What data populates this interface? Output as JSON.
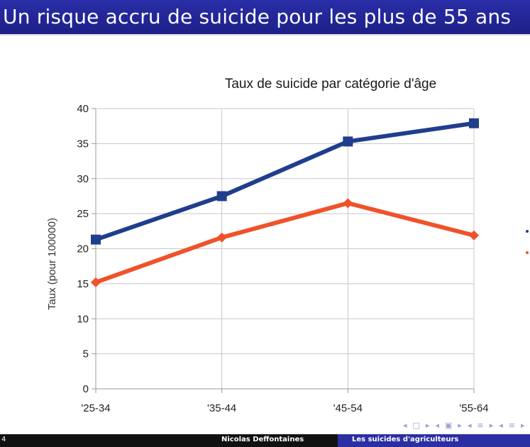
{
  "slide": {
    "title": "Un risque accru de suicide pour les plus de 55 ans",
    "page_number": "4",
    "footer_author": "Nicolas Deffontaines",
    "footer_subject": "Les suicides d'agriculteurs",
    "nav_icons": [
      "◂",
      "□",
      "▸",
      "◂",
      "▣",
      "▸",
      "◂",
      "≡",
      "▸",
      "◂",
      "≡",
      "▸"
    ]
  },
  "chart_data": {
    "type": "line",
    "title": "Taux de suicide par catégorie d'âge",
    "xlabel": "",
    "ylabel": "Taux (pour 100000)",
    "categories": [
      "'25-34",
      "'35-44",
      "'45-54",
      "'55-64"
    ],
    "ylim": [
      0,
      40
    ],
    "yticks": [
      0,
      5,
      10,
      15,
      20,
      25,
      30,
      35,
      40
    ],
    "grid": true,
    "legend": "none",
    "series": [
      {
        "values": [
          21.3,
          27.5,
          35.3,
          37.9
        ],
        "color": "#1f3e8c",
        "marker": "square"
      },
      {
        "values": [
          15.2,
          21.6,
          26.5,
          21.9
        ],
        "color": "#f0522a",
        "marker": "diamond"
      }
    ]
  }
}
